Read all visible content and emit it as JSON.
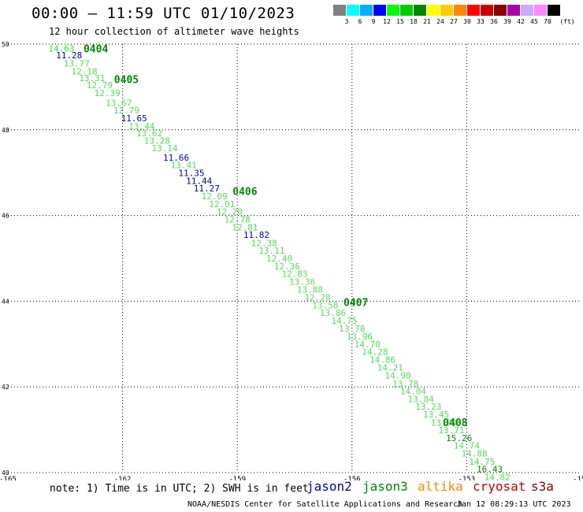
{
  "title": "00:00 – 11:59 UTC 01/10/2023",
  "subtitle": "12 hour collection of altimeter wave heights",
  "legend": {
    "labels": [
      "3",
      "6",
      "9",
      "12",
      "15",
      "18",
      "21",
      "24",
      "27",
      "30",
      "33",
      "36",
      "39",
      "42",
      "45",
      "70"
    ],
    "unit": "(ft)",
    "colors": [
      "#808080",
      "#00ffff",
      "#00b0ff",
      "#0000ff",
      "#00ff00",
      "#00cc00",
      "#008800",
      "#ffff00",
      "#ffcc00",
      "#ff8800",
      "#ff0000",
      "#cc0000",
      "#880000",
      "#aa00aa",
      "#ccaaff",
      "#ff88ff",
      "#000000"
    ]
  },
  "chart_data": {
    "type": "scatter",
    "x_axis": {
      "min": -165,
      "max": -150,
      "ticks": [
        -165,
        -162,
        -159,
        -156,
        -153,
        -150
      ],
      "tick_labels": [
        "-165",
        "-162",
        "-159",
        "-156",
        "-153",
        "-150"
      ]
    },
    "y_axis": {
      "min": 40,
      "max": 50,
      "ticks": [
        40,
        42,
        44,
        46,
        48,
        50
      ],
      "tick_labels": [
        "40",
        "42",
        "44",
        "46",
        "48",
        "50"
      ]
    },
    "grid": "dotted",
    "time_labels": [
      {
        "text": "0404",
        "lon": -162.7,
        "lat": 49.9
      },
      {
        "text": "0405",
        "lon": -161.9,
        "lat": 49.18
      },
      {
        "text": "0406",
        "lon": -158.8,
        "lat": 46.57
      },
      {
        "text": "0407",
        "lon": -155.9,
        "lat": 43.98
      },
      {
        "text": "0408",
        "lon": -153.3,
        "lat": 41.18
      }
    ],
    "points": [
      {
        "lon": -163.6,
        "lat": 49.9,
        "swh": "14.63",
        "color": "#33dd33"
      },
      {
        "lon": -163.4,
        "lat": 49.74,
        "swh": "11.28",
        "color": "#0000bb"
      },
      {
        "lon": -163.2,
        "lat": 49.55,
        "swh": "13.77",
        "color": "#55dd55"
      },
      {
        "lon": -163.0,
        "lat": 49.37,
        "swh": "12.18",
        "color": "#55dd55"
      },
      {
        "lon": -162.8,
        "lat": 49.21,
        "swh": "13.31",
        "color": "#55dd55"
      },
      {
        "lon": -162.6,
        "lat": 49.04,
        "swh": "12.79",
        "color": "#55dd55"
      },
      {
        "lon": -162.4,
        "lat": 48.86,
        "swh": "12.39",
        "color": "#55dd55"
      },
      {
        "lon": -162.1,
        "lat": 48.63,
        "swh": "13.67",
        "color": "#55dd55"
      },
      {
        "lon": -161.9,
        "lat": 48.46,
        "swh": "12.79",
        "color": "#55dd55"
      },
      {
        "lon": -161.7,
        "lat": 48.27,
        "swh": "11.65",
        "color": "#0000bb"
      },
      {
        "lon": -161.5,
        "lat": 48.09,
        "swh": "13.44",
        "color": "#55dd55"
      },
      {
        "lon": -161.3,
        "lat": 47.92,
        "swh": "13.62",
        "color": "#55dd55"
      },
      {
        "lon": -161.1,
        "lat": 47.75,
        "swh": "13.28",
        "color": "#55dd55"
      },
      {
        "lon": -160.9,
        "lat": 47.57,
        "swh": "13.14",
        "color": "#55dd55"
      },
      {
        "lon": -160.6,
        "lat": 47.35,
        "swh": "11.66",
        "color": "#0000bb"
      },
      {
        "lon": -160.4,
        "lat": 47.18,
        "swh": "13.41",
        "color": "#55dd55"
      },
      {
        "lon": -160.2,
        "lat": 46.99,
        "swh": "11.35",
        "color": "#0000bb"
      },
      {
        "lon": -160.0,
        "lat": 46.81,
        "swh": "11.44",
        "color": "#0000bb"
      },
      {
        "lon": -159.8,
        "lat": 46.64,
        "swh": "11.27",
        "color": "#0000bb"
      },
      {
        "lon": -159.6,
        "lat": 46.45,
        "swh": "12.09",
        "color": "#55dd55"
      },
      {
        "lon": -159.4,
        "lat": 46.27,
        "swh": "12.01",
        "color": "#55dd55"
      },
      {
        "lon": -159.2,
        "lat": 46.09,
        "swh": "12.20",
        "color": "#55dd55"
      },
      {
        "lon": -159.0,
        "lat": 45.91,
        "swh": "12.78",
        "color": "#55dd55"
      },
      {
        "lon": -158.8,
        "lat": 45.73,
        "swh": "12.81",
        "color": "#55dd55"
      },
      {
        "lon": -158.5,
        "lat": 45.55,
        "swh": "11.82",
        "color": "#0000bb"
      },
      {
        "lon": -158.3,
        "lat": 45.36,
        "swh": "12.38",
        "color": "#55dd55"
      },
      {
        "lon": -158.1,
        "lat": 45.18,
        "swh": "13.11",
        "color": "#55dd55"
      },
      {
        "lon": -157.9,
        "lat": 45.0,
        "swh": "12.40",
        "color": "#55dd55"
      },
      {
        "lon": -157.7,
        "lat": 44.82,
        "swh": "12.36",
        "color": "#55dd55"
      },
      {
        "lon": -157.5,
        "lat": 44.64,
        "swh": "12.83",
        "color": "#55dd55"
      },
      {
        "lon": -157.3,
        "lat": 44.46,
        "swh": "13.36",
        "color": "#55dd55"
      },
      {
        "lon": -157.1,
        "lat": 44.27,
        "swh": "13.88",
        "color": "#55dd55"
      },
      {
        "lon": -156.9,
        "lat": 44.09,
        "swh": "12.28",
        "color": "#55dd55"
      },
      {
        "lon": -156.7,
        "lat": 43.91,
        "swh": "13.58",
        "color": "#55dd55"
      },
      {
        "lon": -156.5,
        "lat": 43.73,
        "swh": "13.86",
        "color": "#55dd55"
      },
      {
        "lon": -156.2,
        "lat": 43.55,
        "swh": "14.75",
        "color": "#55dd55"
      },
      {
        "lon": -156.0,
        "lat": 43.36,
        "swh": "13.78",
        "color": "#55dd55"
      },
      {
        "lon": -155.8,
        "lat": 43.18,
        "swh": "13.96",
        "color": "#55dd55"
      },
      {
        "lon": -155.6,
        "lat": 43.0,
        "swh": "14.70",
        "color": "#55dd55"
      },
      {
        "lon": -155.4,
        "lat": 42.82,
        "swh": "14.28",
        "color": "#55dd55"
      },
      {
        "lon": -155.2,
        "lat": 42.64,
        "swh": "14.86",
        "color": "#55dd55"
      },
      {
        "lon": -155.0,
        "lat": 42.45,
        "swh": "14.21",
        "color": "#55dd55"
      },
      {
        "lon": -154.8,
        "lat": 42.27,
        "swh": "14.90",
        "color": "#55dd55"
      },
      {
        "lon": -154.6,
        "lat": 42.08,
        "swh": "13.78",
        "color": "#55dd55"
      },
      {
        "lon": -154.4,
        "lat": 41.9,
        "swh": "14.04",
        "color": "#55dd55"
      },
      {
        "lon": -154.2,
        "lat": 41.72,
        "swh": "13.84",
        "color": "#55dd55"
      },
      {
        "lon": -154.0,
        "lat": 41.54,
        "swh": "13.23",
        "color": "#55dd55"
      },
      {
        "lon": -153.8,
        "lat": 41.36,
        "swh": "13.45",
        "color": "#55dd55"
      },
      {
        "lon": -153.6,
        "lat": 41.17,
        "swh": "13.90",
        "color": "#55dd55"
      },
      {
        "lon": -153.4,
        "lat": 40.99,
        "swh": "13.71",
        "color": "#55dd55"
      },
      {
        "lon": -153.2,
        "lat": 40.81,
        "swh": "15.26",
        "color": "#008800"
      },
      {
        "lon": -153.0,
        "lat": 40.63,
        "swh": "14.74",
        "color": "#55dd55"
      },
      {
        "lon": -152.8,
        "lat": 40.45,
        "swh": "14.88",
        "color": "#55dd55"
      },
      {
        "lon": -152.6,
        "lat": 40.26,
        "swh": "14.75",
        "color": "#55dd55"
      },
      {
        "lon": -152.4,
        "lat": 40.08,
        "swh": "16.43",
        "color": "#008800"
      },
      {
        "lon": -152.2,
        "lat": 39.9,
        "swh": "14.82",
        "color": "#55dd55"
      }
    ]
  },
  "note": "note: 1) Time is in UTC; 2) SWH is in feet",
  "missions": [
    {
      "name": "jason2",
      "color": "#0000cc"
    },
    {
      "name": "jason3",
      "color": "#008800"
    },
    {
      "name": "altika",
      "color": "#ff8800"
    },
    {
      "name": "cryosat",
      "color": "#cc0000"
    },
    {
      "name": "s3a",
      "color": "#880000"
    }
  ],
  "credit": "NOAA/NESDIS Center for Satellite Applications and Research",
  "generated": "Jan 12 08:29:13 UTC 2023"
}
